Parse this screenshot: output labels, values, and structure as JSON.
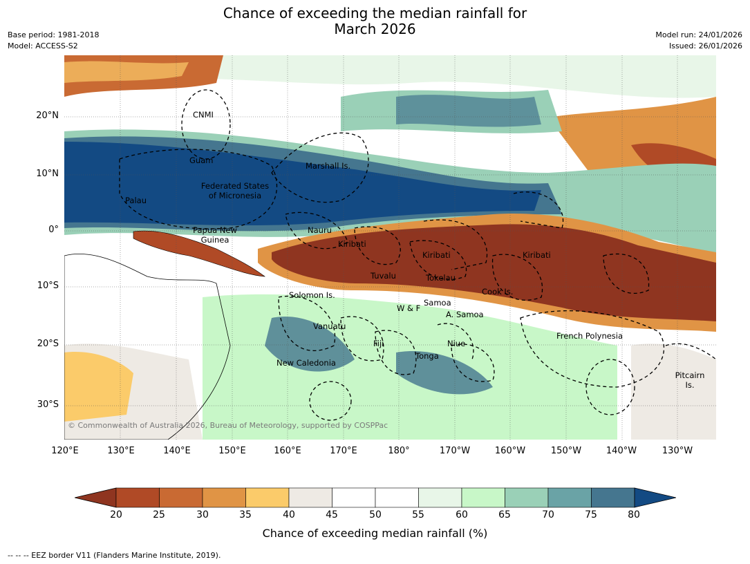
{
  "title_line1": "Chance of exceeding the median rainfall for",
  "title_line2": "March 2026",
  "base_period": "Base period: 1981-2018",
  "model": "Model: ACCESS-S2",
  "model_run": "Model run: 24/01/2026",
  "issued": "Issued: 26/01/2026",
  "lat_labels": [
    "20°N",
    "10°N",
    "0°",
    "10°S",
    "20°S",
    "30°S"
  ],
  "lon_labels": [
    "120°E",
    "130°E",
    "140°E",
    "150°E",
    "160°E",
    "170°E",
    "180°",
    "170°W",
    "160°W",
    "150°W",
    "140°W",
    "130°W"
  ],
  "eez_labels": {
    "cnmi": "CNMI",
    "guam": "Guam",
    "marshall": "Marshall Is.",
    "fsm1": "Federated States",
    "fsm2": "of Micronesia",
    "palau": "Palau",
    "png1": "Papua New",
    "png2": "Guinea",
    "nauru": "Nauru",
    "kiribati_w": "Kiribati",
    "kiribati_c": "Kiribati",
    "kiribati_e": "Kiribati",
    "tuvalu": "Tuvalu",
    "tokelau": "Tokelau",
    "cook": "Cook Is.",
    "solomon": "Solomon Is.",
    "wf": "W & F",
    "samoa": "Samoa",
    "asamoa": "A. Samoa",
    "vanuatu": "Vanuatu",
    "fiji": "Fiji",
    "niue": "Niue",
    "tonga": "Tonga",
    "newcal": "New Caledonia",
    "frpoly": "French Polynesia",
    "pitcairn1": "Pitcairn",
    "pitcairn2": "Is."
  },
  "copyright": "© Commonwealth of Australia 2026, Bureau of Meteorology, supported by COSPPac",
  "colorbar": {
    "ticks": [
      "20",
      "25",
      "30",
      "35",
      "40",
      "45",
      "50",
      "55",
      "60",
      "65",
      "70",
      "75",
      "80"
    ],
    "colors": [
      "#8f3520",
      "#b04a26",
      "#c96a33",
      "#e09445",
      "#fbcb6a",
      "#eeeae4",
      "#ffffff",
      "#ffffff",
      "#e8f6e8",
      "#c8f7c8",
      "#9ad0b7",
      "#6aa3a6",
      "#45768f",
      "#134a83"
    ],
    "label": "Chance of exceeding median rainfall (%)"
  },
  "footer": "--  --  -- EEZ border V11 (Flanders Marine Institute, 2019)."
}
